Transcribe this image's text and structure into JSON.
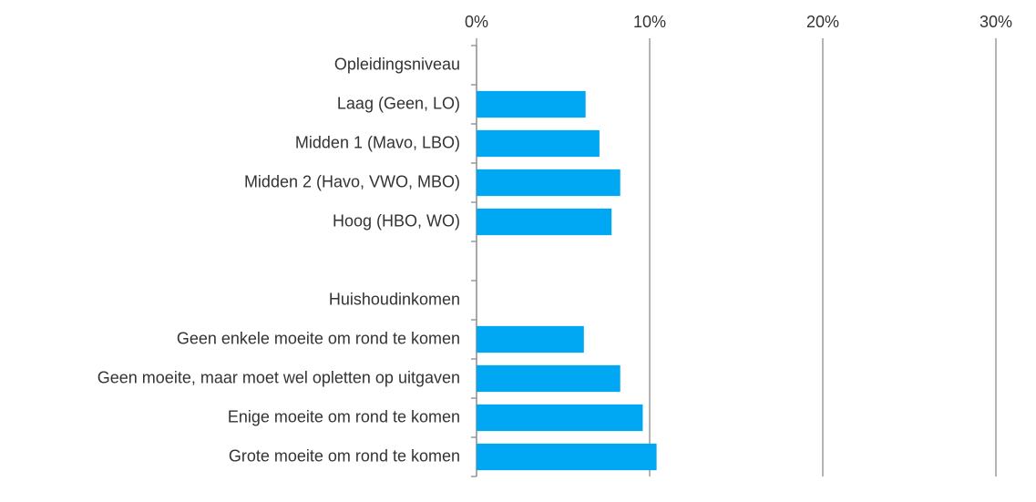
{
  "chart_data": {
    "type": "hbar",
    "categories": [
      "Opleidingsniveau",
      "Laag (Geen, LO)",
      "Midden 1 (Mavo, LBO)",
      "Midden 2 (Havo, VWO, MBO)",
      "Hoog (HBO, WO)",
      null,
      "Huishoudinkomen",
      "Geen enkele moeite om rond te komen",
      "Geen moeite, maar moet wel opletten op uitgaven",
      "Enige moeite om rond te komen",
      "Grote moeite om rond te komen"
    ],
    "values": [
      null,
      6.3,
      7.1,
      8.3,
      7.8,
      null,
      null,
      6.2,
      8.3,
      9.6,
      10.4
    ],
    "color": "#00a8f3",
    "xlim": [
      0,
      30
    ],
    "xticks": [
      {
        "value": 0,
        "label": "0%"
      },
      {
        "value": 10,
        "label": "10%"
      },
      {
        "value": 20,
        "label": "20%"
      },
      {
        "value": 30,
        "label": "30%"
      }
    ],
    "grid": true
  }
}
